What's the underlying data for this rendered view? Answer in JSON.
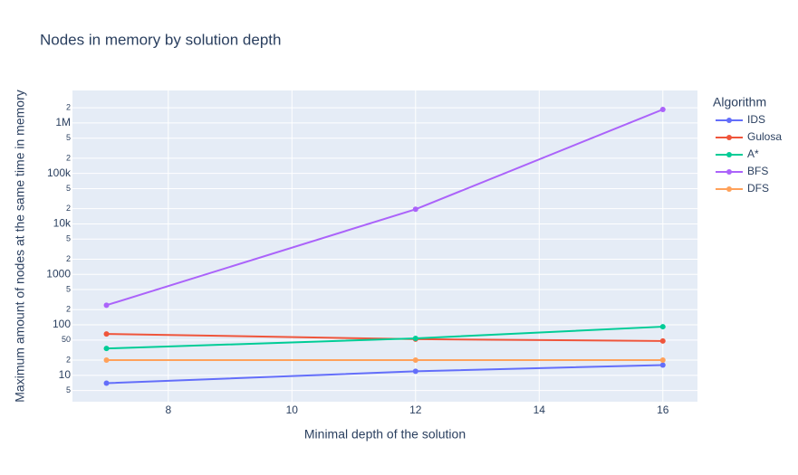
{
  "chart_data": {
    "type": "line",
    "title": "Nodes in memory by solution depth",
    "x_label": "Minimal depth of the solution",
    "y_label": "Maximum amount of nodes at the same time in memory",
    "legend_title": "Algorithm",
    "log_y": true,
    "grid": true,
    "x": [
      7,
      12,
      16
    ],
    "series": [
      {
        "name": "IDS",
        "color": "#636efa",
        "values": [
          7,
          12,
          16
        ]
      },
      {
        "name": "Gulosa",
        "color": "#ef553b",
        "values": [
          66,
          52,
          48
        ]
      },
      {
        "name": "A*",
        "color": "#00cc96",
        "values": [
          34,
          54,
          92
        ]
      },
      {
        "name": "BFS",
        "color": "#ab63fa",
        "values": [
          245,
          19500,
          1850000
        ]
      },
      {
        "name": "DFS",
        "color": "#ffa15a",
        "values": [
          20,
          20,
          20
        ]
      }
    ],
    "xlim": [
      6.45,
      16.56
    ],
    "xticks": [
      8,
      10,
      12,
      14,
      16
    ],
    "ylim": [
      3.0,
      4400000
    ],
    "yticks": [
      5,
      10,
      {
        "value": 20,
        "label": "2"
      },
      50,
      100,
      {
        "value": 200,
        "label": "2"
      },
      {
        "value": 500,
        "label": "5"
      },
      1000,
      {
        "value": 2000,
        "label": "2"
      },
      {
        "value": 5000,
        "label": "5"
      },
      {
        "value": 10000,
        "label": "10k"
      },
      {
        "value": 20000,
        "label": "2"
      },
      {
        "value": 50000,
        "label": "5"
      },
      {
        "value": 100000,
        "label": "100k"
      },
      {
        "value": 200000,
        "label": "2"
      },
      {
        "value": 500000,
        "label": "5"
      },
      {
        "value": 1000000,
        "label": "1M"
      },
      {
        "value": 2000000,
        "label": "2"
      }
    ]
  }
}
